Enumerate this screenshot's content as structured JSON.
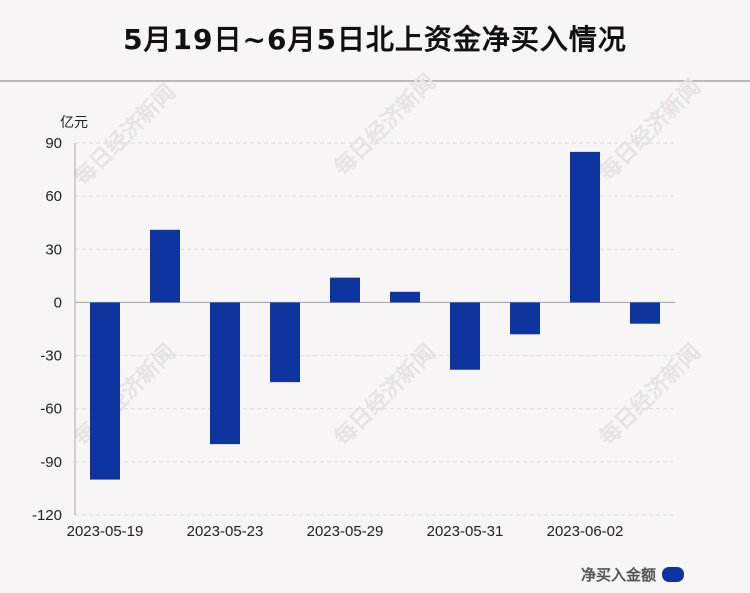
{
  "header": {
    "title": "5月19日~6月5日北上资金净买入情况"
  },
  "watermark": {
    "text": "每日经济新闻"
  },
  "colors": {
    "bar": "#0e34a0",
    "grid": "#dddddd",
    "axis": "#aaaaaa",
    "text": "#222222"
  },
  "chart_data": {
    "type": "bar",
    "title": "5月19日~6月5日北上资金净买入情况",
    "ylabel": "亿元",
    "xlabel": "",
    "ylim": [
      -120,
      90
    ],
    "yticks": [
      90,
      60,
      30,
      0,
      -30,
      -60,
      -90,
      -120
    ],
    "xtick_labels": [
      "2023-05-19",
      "2023-05-23",
      "2023-05-29",
      "2023-05-31",
      "2023-06-02"
    ],
    "series": [
      {
        "name": "净买入金额",
        "values": [
          -100,
          41,
          -80,
          -45,
          14,
          6,
          -38,
          -18,
          85,
          -12
        ]
      }
    ],
    "legend": "bottom-right",
    "grid": true
  }
}
